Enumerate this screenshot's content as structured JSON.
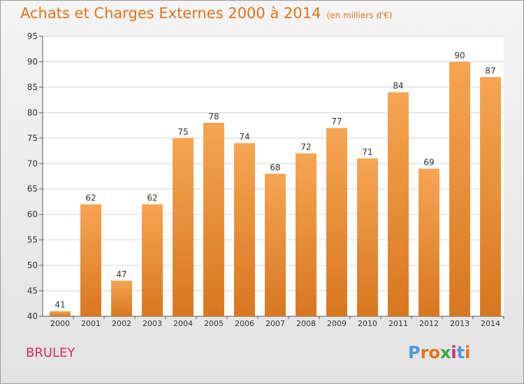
{
  "title": "Achats et Charges Externes 2000 à 2014",
  "subtitle": "(en milliers d'€)",
  "commune": "BRULEY",
  "logo": "Proxiti",
  "colors": {
    "bar_light": "#f6a552",
    "bar_dark": "#d8771f",
    "title": "#e2731b",
    "commune": "#d42a6a",
    "logo_letters": [
      "#4a9ad8",
      "#e2731b",
      "#e2731b",
      "#3aa648",
      "#d42a6a",
      "#4a9ad8",
      "#e2731b"
    ]
  },
  "chart_data": {
    "type": "bar",
    "categories": [
      "2000",
      "2001",
      "2002",
      "2003",
      "2004",
      "2005",
      "2006",
      "2007",
      "2008",
      "2009",
      "2010",
      "2011",
      "2012",
      "2013",
      "2014"
    ],
    "values": [
      41,
      62,
      47,
      62,
      75,
      78,
      74,
      68,
      72,
      77,
      71,
      84,
      69,
      90,
      87
    ],
    "ylim": [
      40,
      95
    ],
    "yticks": [
      40,
      45,
      50,
      55,
      60,
      65,
      70,
      75,
      80,
      85,
      90,
      95
    ],
    "grid": true,
    "xlabel": "",
    "ylabel": ""
  }
}
